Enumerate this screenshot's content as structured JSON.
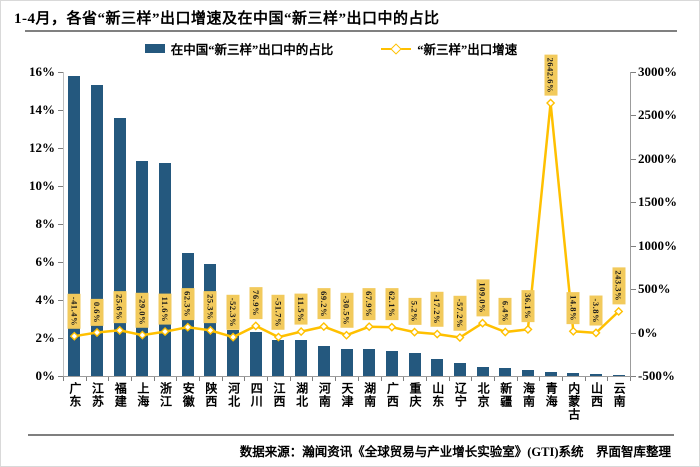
{
  "title": "1-4月，各省“新三样”出口增速及在中国“新三样”出口中的占比",
  "legend": {
    "items": [
      {
        "label": "在中国“新三样”出口中的占比",
        "type": "bar"
      },
      {
        "label": "“新三样”出口增速",
        "type": "line"
      }
    ]
  },
  "footer": {
    "source_note": "数据来源：瀚闻资讯《全球贸易与产业增长实验室》(GTI)系统　界面智库整理"
  },
  "colors": {
    "bar": "#24587E",
    "line": "#FFC000",
    "marker_fill": "#FFFFFF",
    "data_label_bg": "#F2CA5C",
    "axis": "#7f7f7f"
  },
  "chart_data": {
    "type": "combo-bar-line",
    "categories": [
      "广东",
      "江苏",
      "福建",
      "上海",
      "浙江",
      "安徽",
      "陕西",
      "河北",
      "四川",
      "江西",
      "湖北",
      "河南",
      "天津",
      "湖南",
      "广西",
      "重庆",
      "山东",
      "辽宁",
      "北京",
      "新疆",
      "海南",
      "青海",
      "内蒙古",
      "山西",
      "云南"
    ],
    "series": [
      {
        "name": "在中国“新三样”出口中的占比",
        "type": "bar",
        "axis": "left",
        "unit": "%",
        "values": [
          15.8,
          15.3,
          13.6,
          11.3,
          11.2,
          6.5,
          5.9,
          2.4,
          2.3,
          1.9,
          1.9,
          1.6,
          1.4,
          1.4,
          1.3,
          1.2,
          0.9,
          0.7,
          0.5,
          0.4,
          0.3,
          0.2,
          0.15,
          0.1,
          0.05
        ]
      },
      {
        "name": "“新三样”出口增速",
        "type": "line",
        "axis": "right",
        "unit": "%",
        "values": [
          -41.4,
          0.6,
          25.6,
          -29.0,
          11.6,
          62.3,
          25.3,
          -52.3,
          76.9,
          -51.7,
          11.5,
          69.2,
          -30.5,
          67.9,
          62.1,
          5.2,
          -17.2,
          -57.2,
          109.0,
          6.4,
          36.1,
          2642.6,
          14.8,
          -3.8,
          243.3
        ]
      }
    ],
    "data_labels": [
      "-41.4%",
      "0.6%",
      "25.6%",
      "-29.0%",
      "11.6%",
      "62.3%",
      "25.3%",
      "-52.3%",
      "76.9%",
      "-51.7%",
      "11.5%",
      "69.2%",
      "-30.5%",
      "67.9%",
      "62.1%",
      "5.2%",
      "-17.2%",
      "-57.2%",
      "109.0%",
      "6.4%",
      "36.1%",
      "2642.6%",
      "14.8%",
      "-3.8%",
      "243.3%"
    ],
    "left_axis": {
      "min": 0,
      "max": 16,
      "ticks": [
        "0%",
        "2%",
        "4%",
        "6%",
        "8%",
        "10%",
        "12%",
        "14%",
        "16%"
      ]
    },
    "right_axis": {
      "min": -500,
      "max": 3000,
      "ticks": [
        "-500%",
        "0%",
        "500%",
        "1000%",
        "1500%",
        "2000%",
        "2500%",
        "3000%"
      ]
    },
    "grid": false,
    "legend_position": "top"
  }
}
